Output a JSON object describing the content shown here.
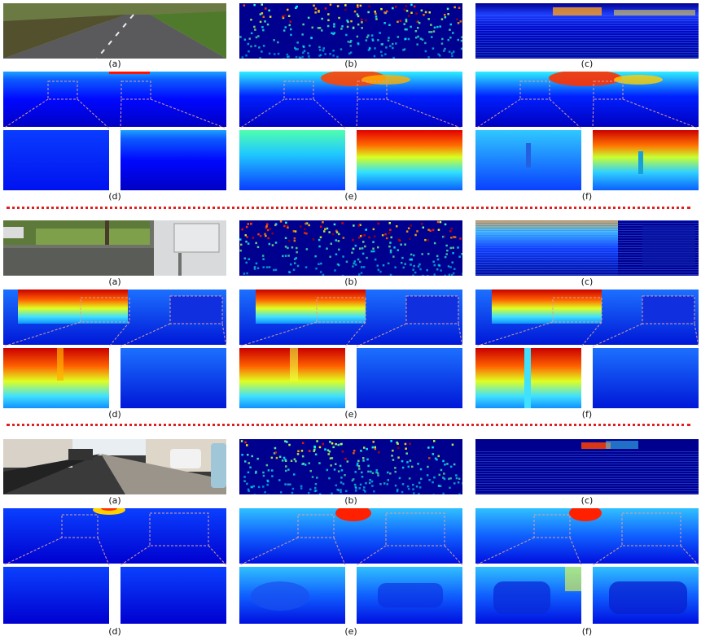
{
  "figure": {
    "groups": [
      {
        "captions": {
          "a": "(a)",
          "b": "(b)",
          "c": "(c)",
          "d": "(d)",
          "e": "(e)",
          "f": "(f)"
        }
      },
      {
        "captions": {
          "a": "(a)",
          "b": "(b)",
          "c": "(c)",
          "d": "(d)",
          "e": "(e)",
          "f": "(f)"
        }
      },
      {
        "captions": {
          "a": "(a)",
          "b": "(b)",
          "c": "(c)",
          "d": "(d)",
          "e": "(e)",
          "f": "(f)"
        }
      }
    ]
  },
  "colors": {
    "jet_dark_blue": "#00008f",
    "jet_blue": "#0000ff",
    "jet_cyan": "#00ffff",
    "jet_yellow": "#ffff00",
    "jet_red": "#ff0000",
    "separator": "#e02020",
    "zoom_box": "#d9a0a0"
  }
}
